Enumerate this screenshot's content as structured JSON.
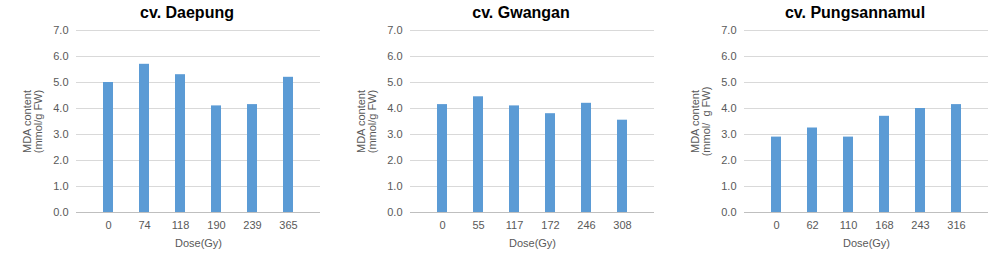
{
  "chart_data": [
    {
      "type": "bar",
      "title": "cv. Daepung",
      "categories": [
        "0",
        "74",
        "118",
        "190",
        "239",
        "365"
      ],
      "values": [
        5.0,
        5.7,
        5.3,
        4.1,
        4.15,
        5.2
      ],
      "color": "#5b9bd5",
      "xlabel": "Dose(Gy)",
      "ylabel": "MDA content\n(mmol/g FW)",
      "ylim": [
        0,
        7
      ],
      "yticks": [
        0,
        1,
        2,
        3,
        4,
        5,
        6,
        7
      ],
      "grid": true
    },
    {
      "type": "bar",
      "title": "cv. Gwangan",
      "categories": [
        "0",
        "55",
        "117",
        "172",
        "246",
        "308"
      ],
      "values": [
        4.15,
        4.45,
        4.1,
        3.8,
        4.2,
        3.55
      ],
      "color": "#5b9bd5",
      "xlabel": "Dose(Gy)",
      "ylabel": "MDA content\n(mmol/g FW)",
      "ylim": [
        0,
        7
      ],
      "yticks": [
        0,
        1,
        2,
        3,
        4,
        5,
        6,
        7
      ],
      "grid": true
    },
    {
      "type": "bar",
      "title": "cv. Pungsannamul",
      "categories": [
        "0",
        "62",
        "110",
        "168",
        "243",
        "316"
      ],
      "values": [
        2.9,
        3.25,
        2.9,
        3.7,
        4.0,
        4.15
      ],
      "color": "#5b9bd5",
      "xlabel": "Dose(Gy)",
      "ylabel": "MDA content\n(mmol/  g FW)",
      "ylim": [
        0,
        7
      ],
      "yticks": [
        0,
        1,
        2,
        3,
        4,
        5,
        6,
        7
      ],
      "grid": true
    }
  ]
}
